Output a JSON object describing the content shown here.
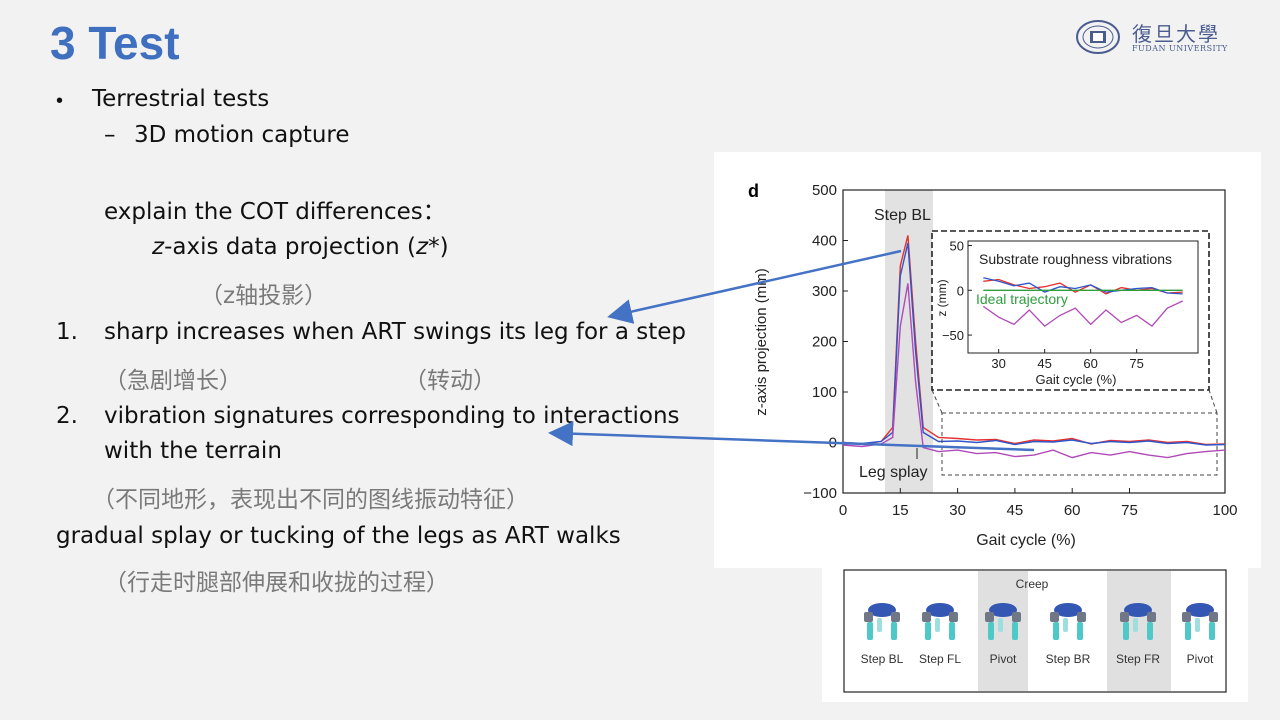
{
  "slide": {
    "title": "3 Test",
    "logo_cn": "復旦大學",
    "logo_en": "FUDAN UNIVERSITY",
    "bullet_char": "•",
    "dash_char": "–",
    "lines": {
      "l1": "Terrestrial tests",
      "l2": "3D motion capture",
      "l3": "explain the COT differences：",
      "l4_em": "z",
      "l4_rest": "-axis data projection (",
      "l4_em2": "z",
      "l4_end": "*)",
      "l5": "（z轴投影）",
      "n1": "1.",
      "l6": "sharp increases when ART swings its leg for a step",
      "l7a": "（急剧增长）",
      "l7b": "（转动）",
      "n2": "2.",
      "l8": "vibration signatures corresponding  to interactions",
      "l9": "with the terrain",
      "l10": "（不同地形，表现出不同的图线振动特征）",
      "l11": "gradual splay or tucking of the legs as ART walks",
      "l12": "（行走时腿部伸展和收拢的过程）"
    }
  },
  "figure_d": {
    "panel_label": "d",
    "ylabel": "z-axis projection (mm)",
    "xlabel": "Gait cycle (%)",
    "x_ticks": [
      "0",
      "15",
      "30",
      "45",
      "60",
      "75",
      "100"
    ],
    "y_ticks": [
      "500",
      "400",
      "300",
      "200",
      "100",
      "0",
      "−100"
    ],
    "annot_step": "Step BL",
    "annot_splay": "Leg splay",
    "inset": {
      "title": "Substrate roughness vibrations",
      "ideal": "Ideal trajectory",
      "ylabel": "z (mm)",
      "xlabel": "Gait cycle (%)",
      "x_ticks": [
        "30",
        "45",
        "60",
        "75"
      ],
      "y_ticks": [
        "50",
        "0",
        "−50"
      ]
    }
  },
  "chart_data": {
    "type": "line",
    "title": "",
    "xlabel": "Gait cycle (%)",
    "ylabel": "z-axis projection (mm)",
    "xlim": [
      0,
      100
    ],
    "ylim": [
      -100,
      500
    ],
    "series": [
      {
        "color": "#e53030",
        "x": [
          0,
          5,
          10,
          13,
          15,
          17,
          19,
          21,
          25,
          30,
          35,
          40,
          45,
          50,
          55,
          60,
          65,
          70,
          75,
          80,
          85,
          90,
          95,
          100
        ],
        "y": [
          0,
          -3,
          2,
          30,
          350,
          410,
          200,
          30,
          10,
          8,
          5,
          6,
          -2,
          5,
          3,
          8,
          -3,
          4,
          2,
          5,
          0,
          2,
          -4,
          -3
        ]
      },
      {
        "color": "#2f56c9",
        "x": [
          0,
          5,
          10,
          13,
          15,
          17,
          19,
          21,
          25,
          30,
          35,
          40,
          45,
          50,
          55,
          60,
          65,
          70,
          75,
          80,
          85,
          90,
          95,
          100
        ],
        "y": [
          0,
          -2,
          2,
          20,
          330,
          395,
          180,
          20,
          2,
          3,
          0,
          4,
          -4,
          2,
          1,
          5,
          -2,
          2,
          0,
          3,
          -2,
          0,
          -5,
          -4
        ]
      },
      {
        "color": "#b04ab8",
        "x": [
          0,
          5,
          10,
          13,
          15,
          17,
          19,
          21,
          25,
          30,
          35,
          40,
          45,
          50,
          55,
          60,
          65,
          70,
          75,
          80,
          85,
          90,
          95,
          100
        ],
        "y": [
          -5,
          -8,
          -3,
          10,
          230,
          315,
          120,
          -10,
          -18,
          -15,
          -22,
          -20,
          -28,
          -25,
          -15,
          -30,
          -20,
          -25,
          -18,
          -25,
          -30,
          -22,
          -18,
          -15
        ]
      }
    ],
    "inset_series": [
      {
        "color": "#e53030",
        "x": [
          25,
          30,
          35,
          40,
          45,
          50,
          55,
          60,
          65,
          70,
          75,
          80,
          85,
          90
        ],
        "y": [
          10,
          12,
          6,
          2,
          4,
          8,
          -2,
          6,
          -4,
          3,
          0,
          2,
          -3,
          -2
        ]
      },
      {
        "color": "#2f56c9",
        "x": [
          25,
          30,
          35,
          40,
          45,
          50,
          55,
          60,
          65,
          70,
          75,
          80,
          85,
          90
        ],
        "y": [
          14,
          10,
          5,
          8,
          -2,
          4,
          2,
          6,
          -2,
          0,
          2,
          3,
          -3,
          -4
        ]
      },
      {
        "color": "#b04ab8",
        "x": [
          25,
          30,
          35,
          40,
          45,
          50,
          55,
          60,
          65,
          70,
          75,
          80,
          85,
          90
        ],
        "y": [
          -18,
          -30,
          -38,
          -22,
          -40,
          -28,
          -20,
          -38,
          -22,
          -36,
          -28,
          -40,
          -20,
          -12
        ]
      },
      {
        "color": "#2e9e3e",
        "x": [
          25,
          90
        ],
        "y": [
          0,
          0
        ]
      }
    ]
  },
  "figure_gait": {
    "header": "Creep",
    "labels": [
      "Step BL",
      "Step FL",
      "Pivot",
      "Step BR",
      "Step FR",
      "Pivot"
    ]
  }
}
